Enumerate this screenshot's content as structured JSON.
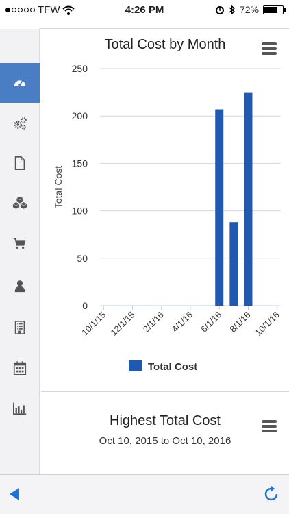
{
  "status_bar": {
    "carrier": "TFW",
    "signal_bars_filled": 1,
    "signal_bars_total": 5,
    "time": "4:26 PM",
    "battery_percent": "72%",
    "battery_level": 0.72,
    "icons": [
      "wifi-icon",
      "alarm-icon",
      "bluetooth-icon",
      "battery-icon"
    ]
  },
  "sidebar": {
    "items": [
      {
        "icon": "dashboard-icon",
        "active": true
      },
      {
        "icon": "gears-icon",
        "active": false
      },
      {
        "icon": "document-icon",
        "active": false
      },
      {
        "icon": "boxes-icon",
        "active": false
      },
      {
        "icon": "cart-icon",
        "active": false
      },
      {
        "icon": "person-icon",
        "active": false
      },
      {
        "icon": "building-icon",
        "active": false
      },
      {
        "icon": "calendar-icon",
        "active": false
      },
      {
        "icon": "bar-chart-icon",
        "active": false
      }
    ],
    "active_color": "#4a7ec4"
  },
  "chart_card": {
    "title": "Total Cost by Month",
    "menu_icon": "hamburger-menu-icon"
  },
  "chart_data": {
    "type": "bar",
    "title": "Total Cost by Month",
    "xlabel": "",
    "ylabel": "Total Cost",
    "ylim": [
      0,
      250
    ],
    "yticks": [
      "250",
      "200",
      "150",
      "100",
      "50",
      "0"
    ],
    "xticks": [
      "10/1/15",
      "12/1/15",
      "2/1/16",
      "4/1/16",
      "6/1/16",
      "8/1/16",
      "10/1/16"
    ],
    "categories": [
      "10/1/15",
      "11/1/15",
      "12/1/15",
      "1/1/16",
      "2/1/16",
      "3/1/16",
      "4/1/16",
      "5/1/16",
      "6/1/16",
      "7/1/16",
      "8/1/16",
      "9/1/16",
      "10/1/16"
    ],
    "series": [
      {
        "name": "Total Cost",
        "color": "#1f5ab0",
        "values": [
          0,
          0,
          0,
          0,
          0,
          0,
          0,
          0,
          207,
          88,
          225,
          0,
          0
        ]
      }
    ],
    "grid": true,
    "legend_position": "bottom"
  },
  "summary_card": {
    "title": "Highest Total Cost",
    "subtitle": "Oct 10, 2015 to Oct 10, 2016",
    "menu_icon": "hamburger-menu-icon"
  },
  "bottom_bar": {
    "back_icon": "back-arrow-icon",
    "refresh_icon": "refresh-icon",
    "accent": "#1a73d9"
  }
}
